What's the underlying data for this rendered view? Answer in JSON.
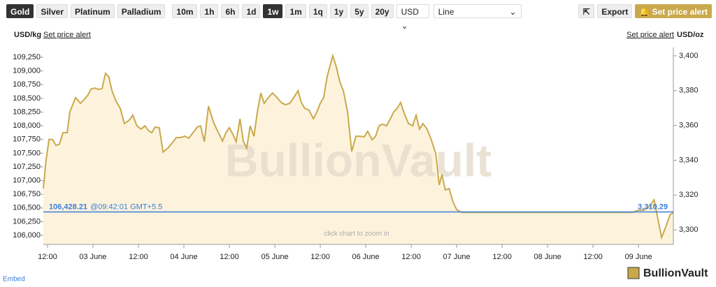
{
  "toolbar": {
    "metals": [
      "Gold",
      "Silver",
      "Platinum",
      "Palladium"
    ],
    "selected_metal_index": 0,
    "ranges": [
      "10m",
      "1h",
      "6h",
      "1d",
      "1w",
      "1m",
      "1q",
      "1y",
      "5y",
      "20y"
    ],
    "selected_range_index": 4,
    "currency": "USD",
    "chart_style": "Line",
    "export": "Export",
    "alert": "Set price alert"
  },
  "chart_data": {
    "type": "line",
    "y_axis_label": "USD/kg",
    "y2_axis_label": "USD/oz",
    "left_alert": "Set price alert",
    "right_alert": "Set price alert",
    "watermark": "BullionVault",
    "hint": "click chart to zoom in",
    "current_price": {
      "value": 106428.21,
      "label": "106,428.21"
    },
    "current_time": "@09:42:01 GMT+5.5",
    "current_price_y2": {
      "value": 3310.29,
      "label": "3,310.29"
    },
    "xlim": [
      10.9,
      177.2
    ],
    "xticks": [
      {
        "value": 12,
        "label": "12:00"
      },
      {
        "value": 24,
        "label": "03 June"
      },
      {
        "value": 36,
        "label": "12:00"
      },
      {
        "value": 48,
        "label": "04 June"
      },
      {
        "value": 60,
        "label": "12:00"
      },
      {
        "value": 72,
        "label": "05 June"
      },
      {
        "value": 84,
        "label": "12:00"
      },
      {
        "value": 96,
        "label": "06 June"
      },
      {
        "value": 108,
        "label": "12:00"
      },
      {
        "value": 120,
        "label": "07 June"
      },
      {
        "value": 132,
        "label": "12:00"
      },
      {
        "value": 144,
        "label": "08 June"
      },
      {
        "value": 156,
        "label": "12:00"
      },
      {
        "value": 168,
        "label": "09 June"
      }
    ],
    "ylim": [
      105835,
      109430
    ],
    "yticks": [
      {
        "value": 106000,
        "label": "106,000"
      },
      {
        "value": 106250,
        "label": "106,250"
      },
      {
        "value": 106500,
        "label": "106,500"
      },
      {
        "value": 106750,
        "label": "106,750"
      },
      {
        "value": 107000,
        "label": "107,000"
      },
      {
        "value": 107250,
        "label": "107,250"
      },
      {
        "value": 107500,
        "label": "107,500"
      },
      {
        "value": 107750,
        "label": "107,750"
      },
      {
        "value": 108000,
        "label": "108,000"
      },
      {
        "value": 108250,
        "label": "108,250"
      },
      {
        "value": 108500,
        "label": "108,500"
      },
      {
        "value": 108750,
        "label": "108,750"
      },
      {
        "value": 109000,
        "label": "109,000"
      },
      {
        "value": 109250,
        "label": "109,250"
      }
    ],
    "y2lim": [
      3291.6,
      3404.8
    ],
    "y2ticks": [
      {
        "value": 3300,
        "label": "3,300"
      },
      {
        "value": 3320,
        "label": "3,320"
      },
      {
        "value": 3340,
        "label": "3,340"
      },
      {
        "value": 3360,
        "label": "3,360"
      },
      {
        "value": 3380,
        "label": "3,380"
      },
      {
        "value": 3400,
        "label": "3,400"
      }
    ],
    "area_color": "#fdf3dd",
    "current_color": "#3b7dd8",
    "series": [
      {
        "color": "#c9a94c",
        "x": [
          10.9,
          11.6,
          12.4,
          13.3,
          14.2,
          15.1,
          16.1,
          17.2,
          17.9,
          19.4,
          20.7,
          21.6,
          22.7,
          23.4,
          24.4,
          25.5,
          26.4,
          27.3,
          28.2,
          29.0,
          30.1,
          31.2,
          32.3,
          33.6,
          34.5,
          35.6,
          36.7,
          37.7,
          38.6,
          39.5,
          40.4,
          41.5,
          42.5,
          43.8,
          44.9,
          46.0,
          47.1,
          48.2,
          49.3,
          50.4,
          51.5,
          52.4,
          53.4,
          54.5,
          55.8,
          57.1,
          58.2,
          59.1,
          60.0,
          61.0,
          61.8,
          62.8,
          63.7,
          64.6,
          65.5,
          66.5,
          67.4,
          68.3,
          69.2,
          70.3,
          71.4,
          72.6,
          73.7,
          74.8,
          75.9,
          77.0,
          78.1,
          79.0,
          79.9,
          81.0,
          82.2,
          83.1,
          84.0,
          84.9,
          85.8,
          87.3,
          88.2,
          89.2,
          90.1,
          91.2,
          92.3,
          93.4,
          94.5,
          95.6,
          96.5,
          97.7,
          98.6,
          99.5,
          100.4,
          101.5,
          102.5,
          103.4,
          104.3,
          105.2,
          106.2,
          107.3,
          108.4,
          109.3,
          110.2,
          111.1,
          112.2,
          113.3,
          114.5,
          115.4,
          116.1,
          117.0,
          118.0,
          119.1,
          120.0,
          121.3,
          166.5,
          168.0,
          169.3,
          170.8,
          172.1,
          173.0,
          174.1,
          175.2,
          176.3,
          177.2
        ],
        "values": [
          106855,
          107365,
          107750,
          107750,
          107645,
          107660,
          107875,
          107875,
          108255,
          108515,
          108410,
          108475,
          108565,
          108665,
          108690,
          108665,
          108680,
          108960,
          108895,
          108640,
          108450,
          108320,
          108040,
          108105,
          108195,
          108000,
          107940,
          108000,
          107915,
          107875,
          107975,
          107965,
          107520,
          107595,
          107685,
          107785,
          107785,
          107810,
          107775,
          107875,
          107975,
          108000,
          107710,
          108360,
          108065,
          107875,
          107720,
          107875,
          107965,
          107835,
          107710,
          108130,
          107710,
          107595,
          108000,
          107810,
          108255,
          108600,
          108410,
          108515,
          108600,
          108515,
          108425,
          108385,
          108410,
          108515,
          108640,
          108425,
          108320,
          108285,
          108130,
          108255,
          108410,
          108515,
          108895,
          109280,
          109085,
          108795,
          108640,
          108255,
          107530,
          107810,
          107810,
          107800,
          107900,
          107745,
          107810,
          108000,
          108030,
          108000,
          108130,
          108255,
          108320,
          108425,
          108220,
          108040,
          108000,
          108195,
          107940,
          108040,
          107940,
          107745,
          107490,
          106920,
          107110,
          106830,
          106855,
          106600,
          106470,
          106420,
          106420,
          106460,
          106460,
          106525,
          106650,
          106345,
          105960,
          106155,
          106370,
          106420
        ]
      }
    ]
  },
  "footer": {
    "embed": "Embed",
    "logo": "BullionVault"
  }
}
